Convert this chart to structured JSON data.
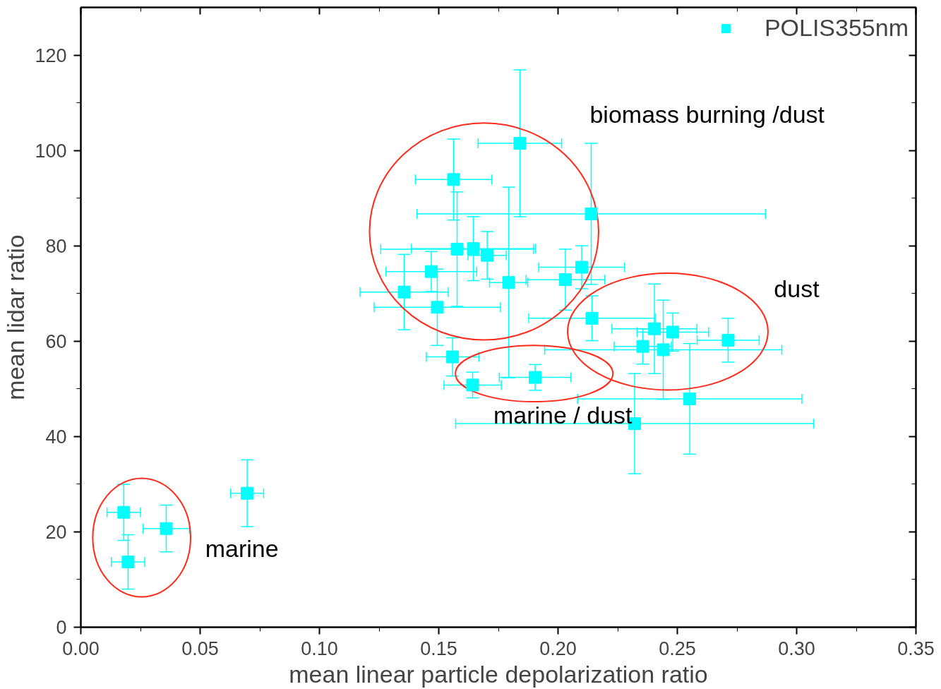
{
  "chart_data": {
    "type": "scatter",
    "xlabel": "mean linear particle depolarization ratio",
    "ylabel": "mean lidar ratio",
    "xlim": [
      0,
      0.35
    ],
    "ylim": [
      0,
      130
    ],
    "xticks": [
      {
        "value": 0,
        "label": "0.00"
      },
      {
        "value": 0.05,
        "label": "0.05"
      },
      {
        "value": 0.1,
        "label": "0.10"
      },
      {
        "value": 0.15,
        "label": "0.15"
      },
      {
        "value": 0.2,
        "label": "0.20"
      },
      {
        "value": 0.25,
        "label": "0.25"
      },
      {
        "value": 0.3,
        "label": "0.30"
      },
      {
        "value": 0.35,
        "label": "0.35"
      }
    ],
    "yticks": [
      0,
      20,
      40,
      60,
      80,
      100,
      120
    ],
    "grid": false,
    "legend": "top right",
    "marker": "square",
    "series": [
      {
        "name": "POLIS355nm",
        "color": "#00ffff",
        "x": [
          0.018,
          0.0198,
          0.0358,
          0.0697,
          0.184,
          0.1562,
          0.2139,
          0.1577,
          0.1645,
          0.1703,
          0.1469,
          0.1355,
          0.1494,
          0.1793,
          0.2031,
          0.2099,
          0.2142,
          0.2404,
          0.2441,
          0.2355,
          0.2481,
          0.2713,
          0.2552,
          0.2321,
          0.1558,
          0.1642,
          0.1904
        ],
        "values": [
          24.1,
          13.7,
          20.7,
          28.1,
          101.5,
          93.9,
          86.7,
          79.3,
          79.4,
          78.0,
          74.6,
          70.3,
          67.1,
          72.3,
          72.9,
          75.5,
          64.8,
          62.6,
          58.2,
          58.9,
          61.9,
          60.2,
          47.9,
          42.7,
          56.7,
          50.8,
          52.4
        ],
        "errors": [
          5.9,
          5.7,
          4.9,
          7.0,
          15.4,
          8.5,
          14.8,
          12.0,
          6.7,
          5.0,
          4.2,
          7.9,
          8.0,
          20.0,
          6.4,
          4.5,
          4.7,
          9.4,
          10.4,
          3.7,
          4.0,
          4.6,
          11.6,
          10.5,
          4.0,
          2.7,
          2.7
        ],
        "xerrors": [
          0.007,
          0.007,
          0.0097,
          0.0069,
          0.0175,
          0.016,
          0.073,
          0.032,
          0.026,
          0.008,
          0.019,
          0.0185,
          0.0265,
          0.008,
          0.0165,
          0.018,
          0.0265,
          0.0178,
          0.0497,
          0.012,
          0.015,
          0.013,
          0.047,
          0.075,
          0.011,
          0.012,
          0.015
        ]
      }
    ],
    "annotations": [
      "biomass burning /dust",
      "dust",
      "marine / dust",
      "marine"
    ]
  }
}
